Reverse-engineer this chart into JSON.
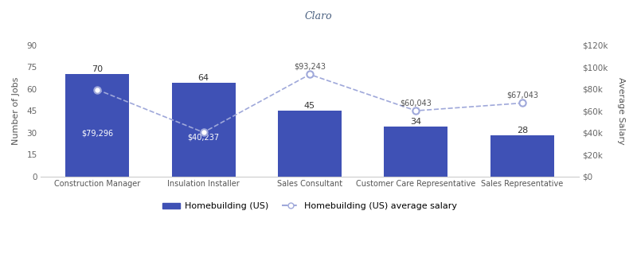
{
  "categories": [
    "Construction Manager",
    "Insulation Installer",
    "Sales Consultant",
    "Customer Care Representative",
    "Sales Representative"
  ],
  "job_counts": [
    70,
    64,
    45,
    34,
    28
  ],
  "avg_salaries": [
    79296,
    40237,
    93243,
    60043,
    67043
  ],
  "bar_color": "#3F51B5",
  "line_color": "#9FA8DA",
  "bar_labels": [
    "70",
    "64",
    "45",
    "34",
    "28"
  ],
  "salary_inside_labels": [
    "$79,296",
    "$40,237"
  ],
  "salary_inside_indices": [
    0,
    1
  ],
  "salary_above_labels": [
    "$93,243",
    "$60,043",
    "$67,043"
  ],
  "salary_above_indices": [
    2,
    3,
    4
  ],
  "ylim_left": [
    0,
    90
  ],
  "ylim_right": [
    0,
    120000
  ],
  "yticks_left": [
    0,
    15,
    30,
    45,
    60,
    75,
    90
  ],
  "yticks_right": [
    0,
    20000,
    40000,
    60000,
    80000,
    100000,
    120000
  ],
  "ytick_labels_right": [
    "$0",
    "$20k",
    "$40k",
    "$60k",
    "$80k",
    "$100k",
    "$120k"
  ],
  "ylabel_left": "Number of Jobs",
  "ylabel_right": "Average Salary",
  "legend_bar": "Homebuilding (US)",
  "legend_line": "Homebuilding (US) average salary",
  "bg_color": "#FFFFFF",
  "bar_width": 0.6
}
